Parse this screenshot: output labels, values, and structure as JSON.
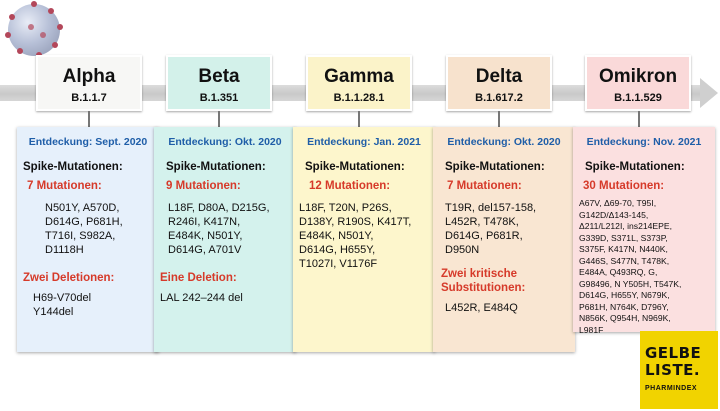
{
  "variants": [
    {
      "name": "Alpha",
      "lineage": "B.1.1.7",
      "box_color": "#f7f7f5",
      "card_color": "#e6f0fb",
      "discovery": "Entdeckung: Sept. 2020",
      "spike_heading": "Spike-Mutationen:",
      "mutation_count": "7 Mutationen:",
      "mutations": [
        "N501Y, A570D,",
        "D614G, P681H,",
        "T716I, S982A,",
        "D1118H"
      ],
      "extra_heading": "Zwei Deletionen:",
      "extra_items": [
        "H69-V70del",
        "Y144del"
      ]
    },
    {
      "name": "Beta",
      "lineage": "B.1.351",
      "box_color": "#d3f1ea",
      "card_color": "#d4f2ed",
      "discovery": "Entdeckung: Okt. 2020",
      "spike_heading": "Spike-Mutationen:",
      "mutation_count": "9 Mutationen:",
      "mutations": [
        "L18F, D80A, D215G,",
        "R246I, K417N,",
        "E484K, N501Y,",
        "D614G, A701V"
      ],
      "extra_heading": "Eine Deletion:",
      "extra_items": [
        "LAL 242–244 del"
      ]
    },
    {
      "name": "Gamma",
      "lineage": "B.1.1.28.1",
      "box_color": "#fbf3c9",
      "card_color": "#fdf6cc",
      "discovery": "Entdeckung: Jan. 2021",
      "spike_heading": "Spike-Mutationen:",
      "mutation_count": "12 Mutationen:",
      "mutations": [
        "L18F, T20N, P26S,",
        "D138Y, R190S, K417T,",
        "E484K, N501Y,",
        "D614G, H655Y,",
        "T1027I,  V1176F"
      ],
      "extra_heading": "",
      "extra_items": []
    },
    {
      "name": "Delta",
      "lineage": "B.1.617.2",
      "box_color": "#f7e2cd",
      "card_color": "#f9e6d2",
      "discovery": "Entdeckung: Okt. 2020",
      "spike_heading": "Spike-Mutationen:",
      "mutation_count": "7 Mutationen:",
      "mutations": [
        "T19R, del157-158,",
        "L452R, T478K,",
        "D614G, P681R,",
        "D950N"
      ],
      "extra_heading": "Zwei kritische Substitutionen:",
      "extra_items": [
        "L452R, E484Q"
      ]
    },
    {
      "name": "Omikron",
      "lineage": "B.1.1.529",
      "box_color": "#fad9d9",
      "card_color": "#fbe0e0",
      "discovery": "Entdeckung: Nov. 2021",
      "spike_heading": "Spike-Mutationen:",
      "mutation_count": "30 Mutationen:",
      "mutations": [
        "A67V, Δ69-70, T95I,",
        "G142D/Δ143-145,",
        "Δ211/L212I, ins214EPE,",
        "G339D, S371L, S373P,",
        "S375F, K417N, N440K,",
        "G446S, S477N, T478K,",
        "E484A, Q493RQ, G,",
        "G98496, N Y505H, T547K,",
        "D614G, H655Y, N679K,",
        "P681H, N764K, D796Y,",
        "N856K, Q954H, N969K,",
        "L981F"
      ],
      "extra_heading": "",
      "extra_items": []
    }
  ],
  "logo": {
    "line1": "GELBE",
    "line2": "LISTE.",
    "line3": "PHARMINDEX"
  },
  "colors": {
    "discovery_text": "#1f5ea8",
    "highlight_text": "#d63a2a",
    "logo_bg": "#f1d300"
  }
}
